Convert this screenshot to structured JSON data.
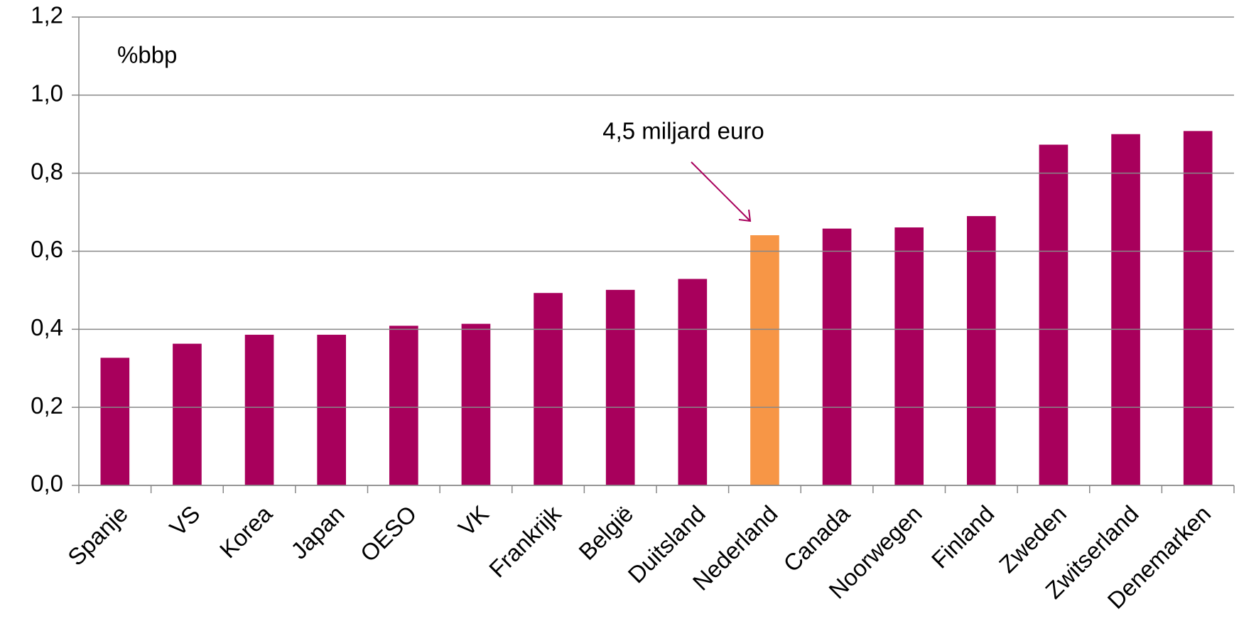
{
  "chart_data": {
    "type": "bar",
    "categories": [
      "Spanje",
      "VS",
      "Korea",
      "Japan",
      "OESO",
      "VK",
      "Frankrijk",
      "België",
      "Duitsland",
      "Nederland",
      "Canada",
      "Noorwegen",
      "Finland",
      "Zweden",
      "Zwitserland",
      "Denemarken"
    ],
    "values": [
      0.327,
      0.363,
      0.386,
      0.386,
      0.409,
      0.414,
      0.493,
      0.501,
      0.529,
      0.641,
      0.658,
      0.661,
      0.69,
      0.873,
      0.9,
      0.908
    ],
    "colors": [
      "#a8005c",
      "#a8005c",
      "#a8005c",
      "#a8005c",
      "#a8005c",
      "#a8005c",
      "#a8005c",
      "#a8005c",
      "#a8005c",
      "#f79646",
      "#a8005c",
      "#a8005c",
      "#a8005c",
      "#a8005c",
      "#a8005c",
      "#a8005c"
    ],
    "ylim": [
      0,
      1.2
    ],
    "yticks": [
      {
        "value": 0,
        "label": "0,0"
      },
      {
        "value": 0.2,
        "label": "0,2"
      },
      {
        "value": 0.4,
        "label": "0,4"
      },
      {
        "value": 0.6,
        "label": "0,6"
      },
      {
        "value": 0.8,
        "label": "0,8"
      },
      {
        "value": 1.0,
        "label": "1,0"
      },
      {
        "value": 1.2,
        "label": "1,2"
      }
    ],
    "grid": true,
    "unit_label": "%bbp",
    "annotation": "4,5 miljard euro"
  }
}
